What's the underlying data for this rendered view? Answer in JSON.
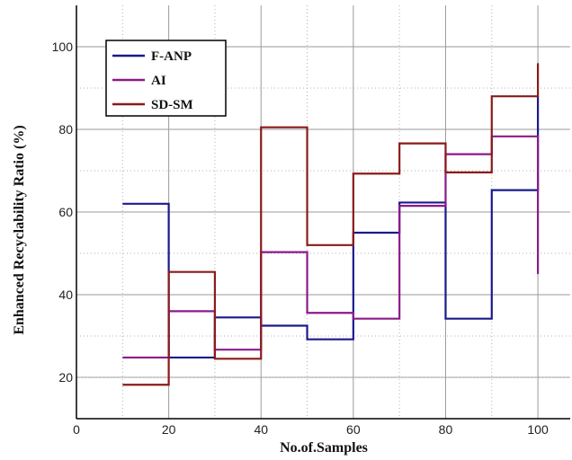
{
  "chart_data": {
    "type": "line",
    "step": true,
    "xlabel": "No.of.Samples",
    "ylabel": "Enhanced Recyclability Ratio (%)",
    "xlim": [
      0,
      107
    ],
    "ylim": [
      10,
      110
    ],
    "x_ticks": [
      0,
      20,
      40,
      60,
      80,
      100
    ],
    "y_ticks": [
      20,
      40,
      60,
      80,
      100
    ],
    "grid": true,
    "legend_position": "top-left",
    "series": [
      {
        "name": "F-ANP",
        "color": "#1a1a8c",
        "x": [
          10,
          20,
          30,
          40,
          50,
          60,
          70,
          80,
          90,
          100
        ],
        "y": [
          62,
          24.8,
          34.5,
          32.5,
          29.2,
          55,
          62.3,
          34.2,
          65.3,
          88
        ]
      },
      {
        "name": "AI",
        "color": "#8b1a8b",
        "x": [
          10,
          20,
          30,
          40,
          50,
          60,
          70,
          80,
          90,
          100
        ],
        "y": [
          24.8,
          36,
          26.7,
          50.3,
          35.6,
          34.2,
          61.5,
          74,
          78.3,
          45
        ]
      },
      {
        "name": "SD-SM",
        "color": "#8b1a1a",
        "x": [
          10,
          20,
          30,
          40,
          50,
          60,
          70,
          80,
          90,
          100
        ],
        "y": [
          18.2,
          45.5,
          24.5,
          80.5,
          52,
          69.3,
          76.6,
          69.6,
          88,
          96
        ]
      }
    ]
  }
}
